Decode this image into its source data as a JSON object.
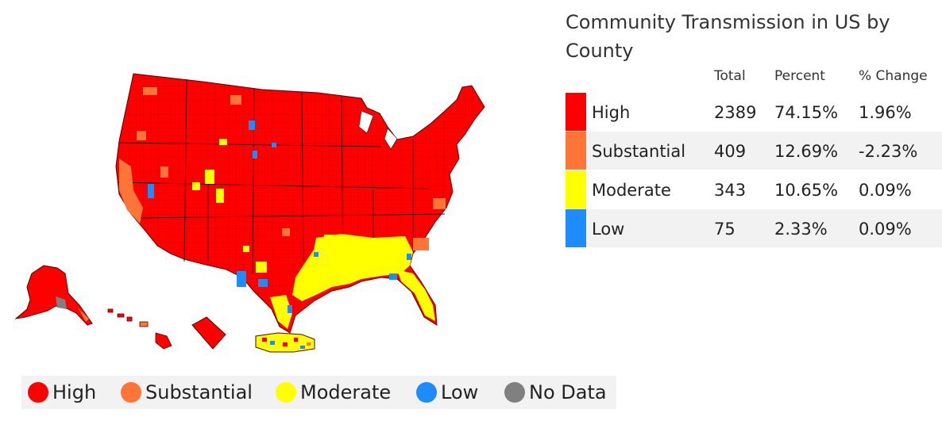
{
  "summary": {
    "title": "Community Transmission in US by County",
    "headers": {
      "total": "Total",
      "percent": "Percent",
      "change": "% Change"
    },
    "rows": [
      {
        "label": "High",
        "total": "2389",
        "percent": "74.15%",
        "change": "1.96%",
        "color": "#ff0000"
      },
      {
        "label": "Substantial",
        "total": "409",
        "percent": "12.69%",
        "change": "-2.23%",
        "color": "#ff7538"
      },
      {
        "label": "Moderate",
        "total": "343",
        "percent": "10.65%",
        "change": "0.09%",
        "color": "#ffff00"
      },
      {
        "label": "Low",
        "total": "75",
        "percent": "2.33%",
        "change": "0.09%",
        "color": "#1e8cff"
      }
    ]
  },
  "legend": {
    "items": [
      {
        "label": "High",
        "color": "#ff0000"
      },
      {
        "label": "Substantial",
        "color": "#ff7538"
      },
      {
        "label": "Moderate",
        "color": "#ffff00"
      },
      {
        "label": "Low",
        "color": "#1e8cff"
      },
      {
        "label": "No Data",
        "color": "#808080"
      }
    ]
  },
  "map": {
    "colors": {
      "high": "#ff0000",
      "substantial": "#ff7538",
      "moderate": "#ffff00",
      "low": "#1e8cff",
      "no_data": "#808080",
      "border": "#5a0000"
    }
  }
}
